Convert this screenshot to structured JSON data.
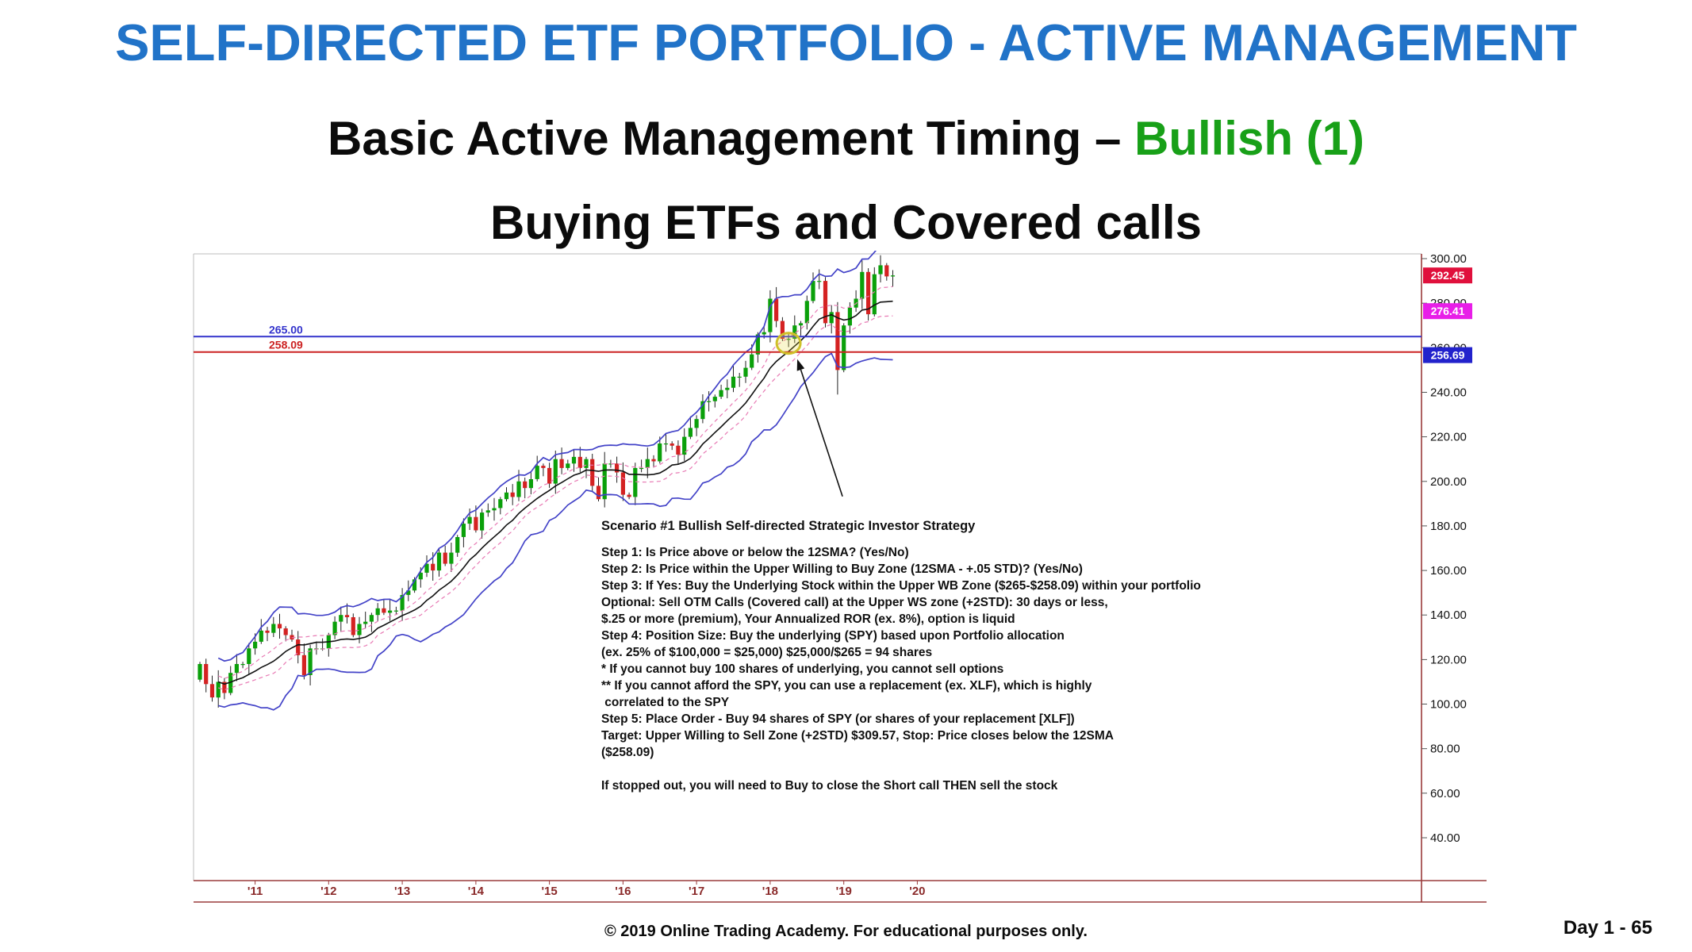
{
  "slide": {
    "title": "SELF-DIRECTED ETF PORTFOLIO - ACTIVE MANAGEMENT",
    "subtitle_prefix": "Basic Active Management Timing – ",
    "subtitle_highlight": "Bullish (1)",
    "subtitle_line2": "Buying ETFs and Covered calls",
    "footer_copyright": "© 2019 Online Trading Academy. For educational purposes only.",
    "footer_page": "Day 1 - 65",
    "colors": {
      "title_blue": "#2173c8",
      "bullish_green": "#18a018"
    }
  },
  "annotation": {
    "heading": "Scenario #1 Bullish Self-directed Strategic Investor Strategy",
    "lines": [
      "Step 1: Is Price above or below the 12SMA? (Yes/No)",
      "Step 2: Is Price within the Upper Willing to Buy Zone (12SMA - +.05 STD)? (Yes/No)",
      "Step 3: If Yes: Buy the Underlying Stock within the Upper WB Zone ($265-$258.09) within your portfolio",
      "Optional: Sell OTM Calls (Covered call) at the Upper WS zone (+2STD): 30 days or less,",
      "$.25 or more (premium), Your Annualized ROR (ex. 8%), option is liquid",
      "Step 4: Position Size: Buy the underlying (SPY) based upon Portfolio allocation",
      "(ex. 25% of $100,000 = $25,000) $25,000/$265 = 94 shares",
      "* If you cannot buy 100 shares of underlying, you cannot sell options",
      "** If you cannot afford the SPY, you can use a replacement (ex. XLF), which is highly",
      " correlated to the SPY",
      "Step 5: Place Order - Buy 94 shares of SPY (or shares of your replacement [XLF])",
      "Target: Upper Willing to Sell Zone (+2STD) $309.57, Stop: Price closes below the 12SMA",
      "($258.09)",
      "",
      "If stopped out, you will need to Buy to close the Short call THEN sell the stock"
    ]
  },
  "chart_data": {
    "type": "candlestick",
    "description": "Monthly candlestick chart (SPY-like) 2010-2019 with 12-period SMA and Bollinger-style bands",
    "months_start": "2010-04",
    "first_open": 111,
    "closes": [
      118,
      109,
      103,
      110,
      105,
      114,
      118,
      118,
      125,
      128,
      133,
      132,
      136,
      134,
      131,
      129,
      122,
      113,
      125,
      125,
      125,
      131,
      137,
      140,
      139,
      131,
      136,
      137,
      140,
      143,
      141,
      142,
      142,
      149,
      151,
      156,
      159,
      163,
      160,
      168,
      163,
      168,
      175,
      181,
      184,
      178,
      186,
      187,
      188,
      192,
      195,
      193,
      200,
      197,
      201,
      207,
      206,
      199,
      210,
      206,
      208,
      211,
      206,
      210,
      198,
      192,
      208,
      208,
      204,
      194,
      193,
      206,
      206,
      210,
      209,
      217,
      217,
      216,
      212,
      220,
      224,
      228,
      236,
      236,
      238,
      241,
      242,
      247,
      247,
      251,
      257,
      266,
      267,
      282,
      272,
      264,
      264,
      270,
      271,
      281,
      290,
      290,
      271,
      276,
      250,
      270,
      278,
      282,
      294,
      275,
      293,
      297,
      292,
      292.45
    ],
    "low_overrides": [
      {
        "index": 104,
        "low": 239
      }
    ],
    "bands": {
      "period": 12,
      "stdev_outer": 2,
      "stdev_inner": 0.5
    },
    "x_ticks": [
      "'11",
      "'12",
      "'13",
      "'14",
      "'15",
      "'16",
      "'17",
      "'18",
      "'19",
      "'20"
    ],
    "x_tick_start_index": 9,
    "x_tick_step_months": 12,
    "y_ticks": [
      300,
      280,
      260,
      240,
      220,
      200,
      180,
      160,
      140,
      120,
      100,
      80,
      60,
      40
    ],
    "ylim": [
      40,
      300
    ],
    "hlines": [
      {
        "price": 265.0,
        "label": "265.00",
        "color": "#3333cc"
      },
      {
        "price": 258.09,
        "label": "258.09",
        "color": "#cc2222"
      }
    ],
    "axis_badges": [
      {
        "value": "292.45",
        "price": 292.45,
        "color": "#e0103c"
      },
      {
        "value": "276.41",
        "price": 276.41,
        "color": "#e81ee8"
      },
      {
        "value": "256.69",
        "price": 256.69,
        "color": "#2222cc"
      }
    ],
    "highlight": {
      "index": 96,
      "price": 262
    },
    "colors": {
      "up": "#0aa00a",
      "down": "#d42222",
      "wick": "#222222",
      "band": "#4343c8",
      "sma": "#111111",
      "inner_band": "#e87ab4",
      "axis_maroon": "#9a3b3b",
      "year_label": "#8a2a2a",
      "highlight_circle": "#cfc02a"
    }
  }
}
